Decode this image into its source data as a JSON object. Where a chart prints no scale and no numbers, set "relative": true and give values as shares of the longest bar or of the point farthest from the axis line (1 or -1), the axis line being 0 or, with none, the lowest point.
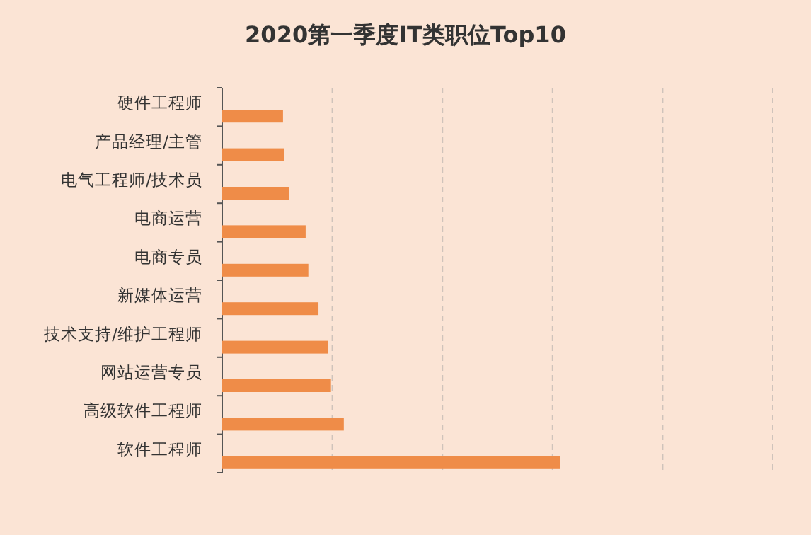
{
  "chart_data": {
    "type": "bar",
    "orientation": "horizontal",
    "relative": true,
    "title": "2020第一季度IT类职位Top10",
    "categories": [
      "硬件工程师",
      "产品经理/主管",
      "电气工程师/技术员",
      "电商运营",
      "电商专员",
      "新媒体运营",
      "技术支持/维护工程师",
      "网站运营专员",
      "高级软件工程师",
      "软件工程师"
    ],
    "values": [
      0.18,
      0.184,
      0.197,
      0.247,
      0.255,
      0.285,
      0.314,
      0.322,
      0.36,
      1
    ],
    "color": "#ef8c48",
    "grid": "x"
  }
}
